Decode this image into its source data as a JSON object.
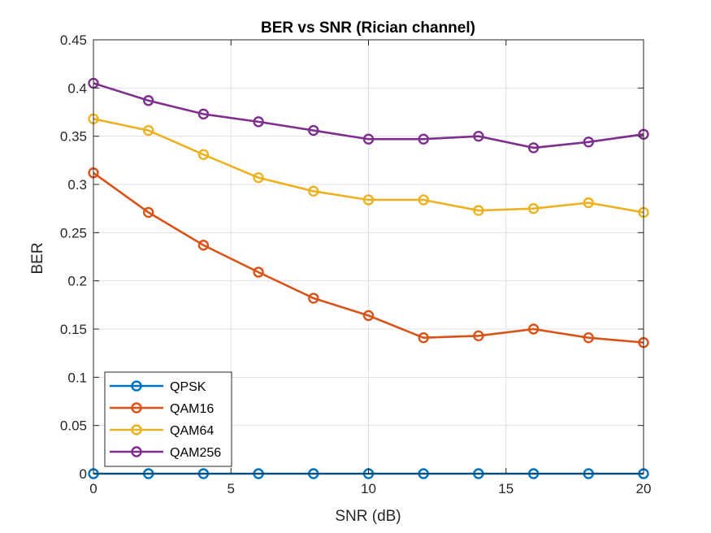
{
  "chart_data": {
    "type": "line",
    "title": "BER vs SNR (Rician channel)",
    "xlabel": "SNR (dB)",
    "ylabel": "BER",
    "xlim": [
      0,
      20
    ],
    "ylim": [
      0,
      0.45
    ],
    "xticks": [
      0,
      5,
      10,
      15,
      20
    ],
    "xtick_labels": [
      "0",
      "5",
      "10",
      "15",
      "20"
    ],
    "yticks": [
      0,
      0.05,
      0.1,
      0.15,
      0.2,
      0.25,
      0.3,
      0.35,
      0.4,
      0.45
    ],
    "ytick_labels": [
      "0",
      "0.05",
      "0.1",
      "0.15",
      "0.2",
      "0.25",
      "0.3",
      "0.35",
      "0.4",
      "0.45"
    ],
    "grid": true,
    "legend_position": "bottom-left",
    "marker": "circle",
    "x": [
      0,
      2,
      4,
      6,
      8,
      10,
      12,
      14,
      16,
      18,
      20
    ],
    "series": [
      {
        "name": "QPSK",
        "color": "#0072BD",
        "values": [
          0,
          0,
          0,
          0,
          0,
          0,
          0,
          0,
          0,
          0,
          0
        ]
      },
      {
        "name": "QAM16",
        "color": "#D95319",
        "values": [
          0.312,
          0.271,
          0.237,
          0.209,
          0.182,
          0.164,
          0.141,
          0.143,
          0.15,
          0.141,
          0.136
        ]
      },
      {
        "name": "QAM64",
        "color": "#EDB120",
        "values": [
          0.368,
          0.356,
          0.331,
          0.307,
          0.293,
          0.284,
          0.284,
          0.273,
          0.275,
          0.281,
          0.271
        ]
      },
      {
        "name": "QAM256",
        "color": "#7E2F8E",
        "values": [
          0.405,
          0.387,
          0.373,
          0.365,
          0.356,
          0.347,
          0.347,
          0.35,
          0.338,
          0.344,
          0.352
        ]
      }
    ]
  }
}
